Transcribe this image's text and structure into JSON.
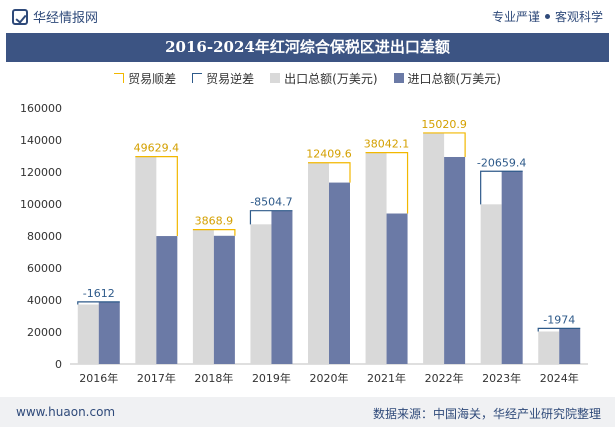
{
  "header": {
    "site_name": "华经情报网",
    "slogan_left": "专业严谨",
    "slogan_right": "客观科学"
  },
  "footer": {
    "website": "www.huaon.com",
    "source": "数据来源：中国海关，华经产业研究院整理"
  },
  "colors": {
    "export": "#d9d9d9",
    "import": "#6b7aa6",
    "surplus": "#f2b800",
    "deficit": "#2e5a8a",
    "title_bg": "#3c5483"
  },
  "chart_data": {
    "type": "bar",
    "title": "2016-2024年红河综合保税区进出口差额",
    "categories": [
      "2016年",
      "2017年",
      "2018年",
      "2019年",
      "2020年",
      "2021年",
      "2022年",
      "2023年",
      "2024年"
    ],
    "series": [
      {
        "name": "出口总额(万美元)",
        "values": [
          37200,
          129600,
          84000,
          87300,
          125800,
          132100,
          144400,
          99800,
          20300
        ]
      },
      {
        "name": "进口总额(万美元)",
        "values": [
          38812,
          79970.6,
          80131.1,
          95804.7,
          113390.4,
          94057.9,
          129379.1,
          120459.4,
          22274
        ]
      }
    ],
    "balance": {
      "surplus_name": "贸易顺差",
      "deficit_name": "贸易逆差",
      "values": [
        -1612,
        49629.4,
        3868.9,
        -8504.7,
        12409.6,
        38042.1,
        15020.9,
        -20659.4,
        -1974
      ],
      "labels": [
        "-1612",
        "49629.4",
        "3868.9",
        "-8504.7",
        "12409.6",
        "38042.1",
        "15020.9",
        "-20659.4",
        "-1974"
      ]
    },
    "ylim": [
      0,
      160000
    ],
    "yticks": [
      0,
      20000,
      40000,
      60000,
      80000,
      100000,
      120000,
      140000,
      160000
    ],
    "legend_position": "top",
    "grid": false
  }
}
